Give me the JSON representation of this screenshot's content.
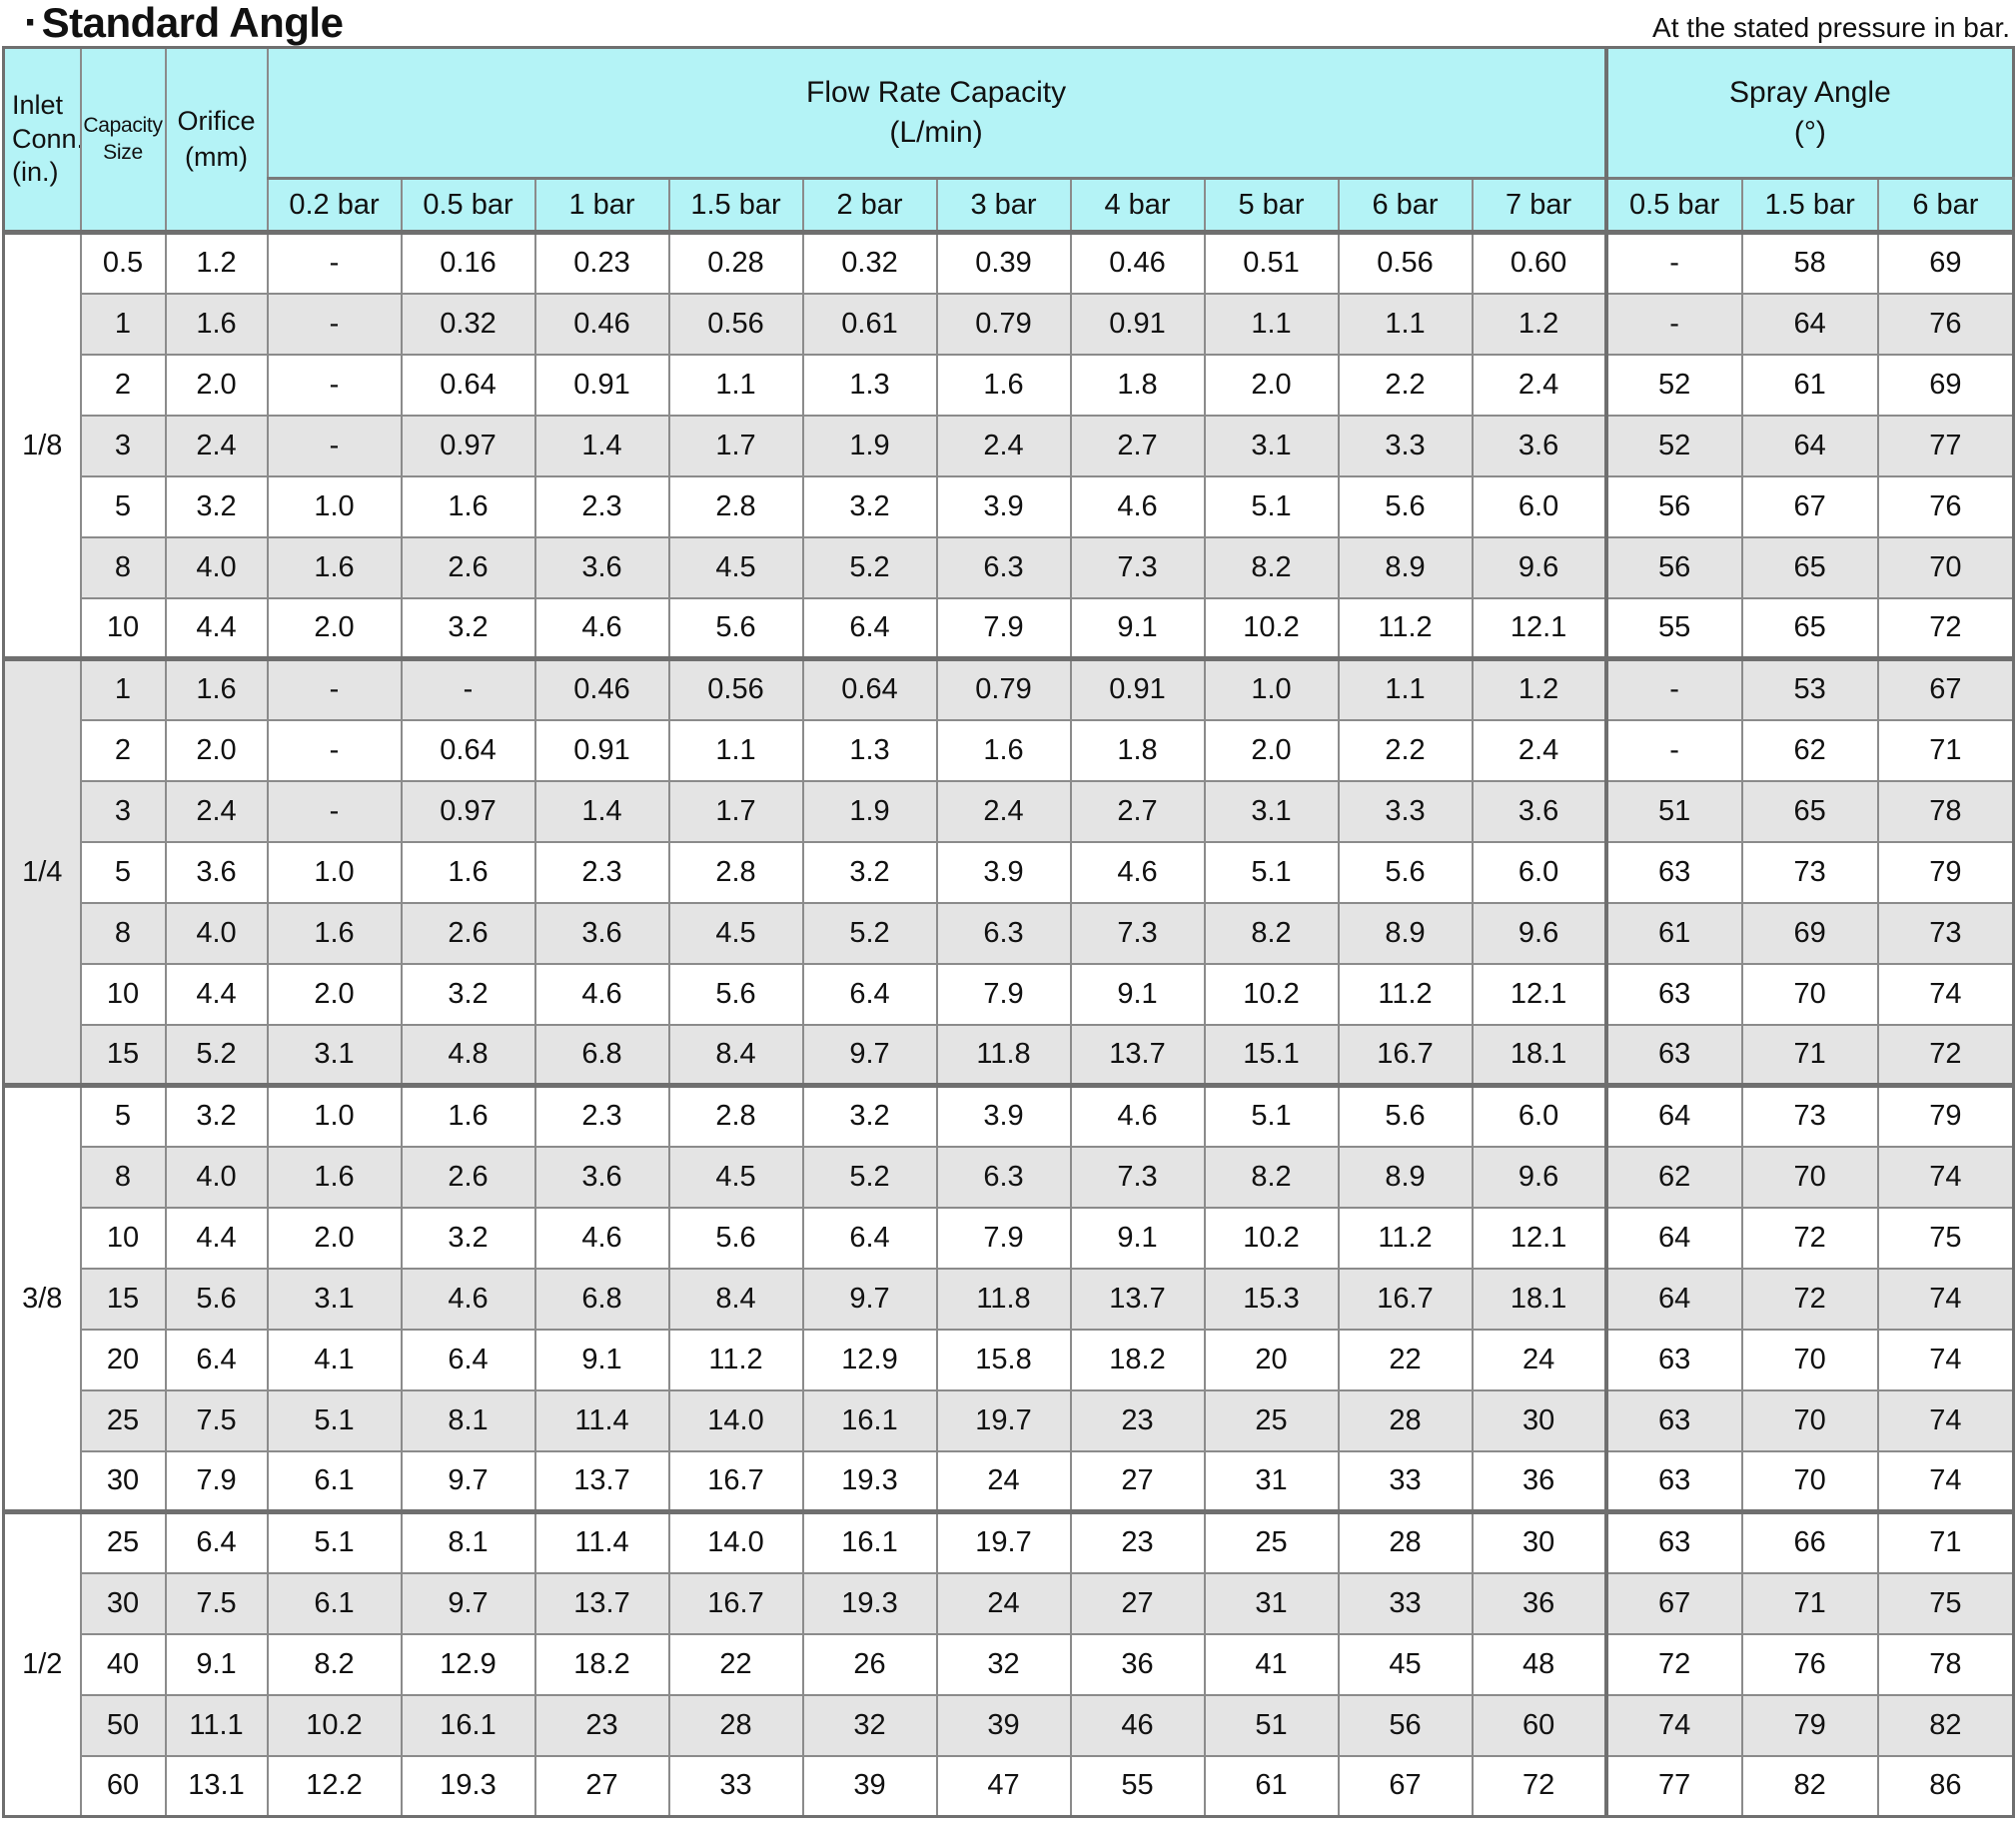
{
  "page": {
    "title_bullet": "·",
    "title": "Standard Angle",
    "note": "At the stated pressure in bar."
  },
  "colors": {
    "header_bg": "#b4f3f6",
    "row_alt_bg": "#e4e4e4",
    "border": "#8b8b8b"
  },
  "table": {
    "headers": {
      "inlet": "Inlet\nConn.\n(in.)",
      "capacity": "Capacity\nSize",
      "orifice": "Orifice\n(mm)",
      "flow_group": "Flow Rate Capacity",
      "flow_unit": "(L/min)",
      "spray_group": "Spray Angle",
      "spray_unit": "(°)",
      "flow_cols": [
        "0.2 bar",
        "0.5 bar",
        "1 bar",
        "1.5 bar",
        "2 bar",
        "3 bar",
        "4 bar",
        "5 bar",
        "6 bar",
        "7 bar"
      ],
      "spray_cols": [
        "0.5 bar",
        "1.5 bar",
        "6 bar"
      ]
    },
    "groups": [
      {
        "inlet": "1/8",
        "rows": [
          {
            "capacity": "0.5",
            "orifice": "1.2",
            "flow": [
              "-",
              "0.16",
              "0.23",
              "0.28",
              "0.32",
              "0.39",
              "0.46",
              "0.51",
              "0.56",
              "0.60"
            ],
            "spray": [
              "-",
              "58",
              "69"
            ]
          },
          {
            "capacity": "1",
            "orifice": "1.6",
            "flow": [
              "-",
              "0.32",
              "0.46",
              "0.56",
              "0.61",
              "0.79",
              "0.91",
              "1.1",
              "1.1",
              "1.2"
            ],
            "spray": [
              "-",
              "64",
              "76"
            ]
          },
          {
            "capacity": "2",
            "orifice": "2.0",
            "flow": [
              "-",
              "0.64",
              "0.91",
              "1.1",
              "1.3",
              "1.6",
              "1.8",
              "2.0",
              "2.2",
              "2.4"
            ],
            "spray": [
              "52",
              "61",
              "69"
            ]
          },
          {
            "capacity": "3",
            "orifice": "2.4",
            "flow": [
              "-",
              "0.97",
              "1.4",
              "1.7",
              "1.9",
              "2.4",
              "2.7",
              "3.1",
              "3.3",
              "3.6"
            ],
            "spray": [
              "52",
              "64",
              "77"
            ]
          },
          {
            "capacity": "5",
            "orifice": "3.2",
            "flow": [
              "1.0",
              "1.6",
              "2.3",
              "2.8",
              "3.2",
              "3.9",
              "4.6",
              "5.1",
              "5.6",
              "6.0"
            ],
            "spray": [
              "56",
              "67",
              "76"
            ]
          },
          {
            "capacity": "8",
            "orifice": "4.0",
            "flow": [
              "1.6",
              "2.6",
              "3.6",
              "4.5",
              "5.2",
              "6.3",
              "7.3",
              "8.2",
              "8.9",
              "9.6"
            ],
            "spray": [
              "56",
              "65",
              "70"
            ]
          },
          {
            "capacity": "10",
            "orifice": "4.4",
            "flow": [
              "2.0",
              "3.2",
              "4.6",
              "5.6",
              "6.4",
              "7.9",
              "9.1",
              "10.2",
              "11.2",
              "12.1"
            ],
            "spray": [
              "55",
              "65",
              "72"
            ]
          }
        ]
      },
      {
        "inlet": "1/4",
        "rows": [
          {
            "capacity": "1",
            "orifice": "1.6",
            "flow": [
              "-",
              "-",
              "0.46",
              "0.56",
              "0.64",
              "0.79",
              "0.91",
              "1.0",
              "1.1",
              "1.2"
            ],
            "spray": [
              "-",
              "53",
              "67"
            ]
          },
          {
            "capacity": "2",
            "orifice": "2.0",
            "flow": [
              "-",
              "0.64",
              "0.91",
              "1.1",
              "1.3",
              "1.6",
              "1.8",
              "2.0",
              "2.2",
              "2.4"
            ],
            "spray": [
              "-",
              "62",
              "71"
            ]
          },
          {
            "capacity": "3",
            "orifice": "2.4",
            "flow": [
              "-",
              "0.97",
              "1.4",
              "1.7",
              "1.9",
              "2.4",
              "2.7",
              "3.1",
              "3.3",
              "3.6"
            ],
            "spray": [
              "51",
              "65",
              "78"
            ]
          },
          {
            "capacity": "5",
            "orifice": "3.6",
            "flow": [
              "1.0",
              "1.6",
              "2.3",
              "2.8",
              "3.2",
              "3.9",
              "4.6",
              "5.1",
              "5.6",
              "6.0"
            ],
            "spray": [
              "63",
              "73",
              "79"
            ]
          },
          {
            "capacity": "8",
            "orifice": "4.0",
            "flow": [
              "1.6",
              "2.6",
              "3.6",
              "4.5",
              "5.2",
              "6.3",
              "7.3",
              "8.2",
              "8.9",
              "9.6"
            ],
            "spray": [
              "61",
              "69",
              "73"
            ]
          },
          {
            "capacity": "10",
            "orifice": "4.4",
            "flow": [
              "2.0",
              "3.2",
              "4.6",
              "5.6",
              "6.4",
              "7.9",
              "9.1",
              "10.2",
              "11.2",
              "12.1"
            ],
            "spray": [
              "63",
              "70",
              "74"
            ]
          },
          {
            "capacity": "15",
            "orifice": "5.2",
            "flow": [
              "3.1",
              "4.8",
              "6.8",
              "8.4",
              "9.7",
              "11.8",
              "13.7",
              "15.1",
              "16.7",
              "18.1"
            ],
            "spray": [
              "63",
              "71",
              "72"
            ]
          }
        ]
      },
      {
        "inlet": "3/8",
        "rows": [
          {
            "capacity": "5",
            "orifice": "3.2",
            "flow": [
              "1.0",
              "1.6",
              "2.3",
              "2.8",
              "3.2",
              "3.9",
              "4.6",
              "5.1",
              "5.6",
              "6.0"
            ],
            "spray": [
              "64",
              "73",
              "79"
            ]
          },
          {
            "capacity": "8",
            "orifice": "4.0",
            "flow": [
              "1.6",
              "2.6",
              "3.6",
              "4.5",
              "5.2",
              "6.3",
              "7.3",
              "8.2",
              "8.9",
              "9.6"
            ],
            "spray": [
              "62",
              "70",
              "74"
            ]
          },
          {
            "capacity": "10",
            "orifice": "4.4",
            "flow": [
              "2.0",
              "3.2",
              "4.6",
              "5.6",
              "6.4",
              "7.9",
              "9.1",
              "10.2",
              "11.2",
              "12.1"
            ],
            "spray": [
              "64",
              "72",
              "75"
            ]
          },
          {
            "capacity": "15",
            "orifice": "5.6",
            "flow": [
              "3.1",
              "4.6",
              "6.8",
              "8.4",
              "9.7",
              "11.8",
              "13.7",
              "15.3",
              "16.7",
              "18.1"
            ],
            "spray": [
              "64",
              "72",
              "74"
            ]
          },
          {
            "capacity": "20",
            "orifice": "6.4",
            "flow": [
              "4.1",
              "6.4",
              "9.1",
              "11.2",
              "12.9",
              "15.8",
              "18.2",
              "20",
              "22",
              "24"
            ],
            "spray": [
              "63",
              "70",
              "74"
            ]
          },
          {
            "capacity": "25",
            "orifice": "7.5",
            "flow": [
              "5.1",
              "8.1",
              "11.4",
              "14.0",
              "16.1",
              "19.7",
              "23",
              "25",
              "28",
              "30"
            ],
            "spray": [
              "63",
              "70",
              "74"
            ]
          },
          {
            "capacity": "30",
            "orifice": "7.9",
            "flow": [
              "6.1",
              "9.7",
              "13.7",
              "16.7",
              "19.3",
              "24",
              "27",
              "31",
              "33",
              "36"
            ],
            "spray": [
              "63",
              "70",
              "74"
            ]
          }
        ]
      },
      {
        "inlet": "1/2",
        "rows": [
          {
            "capacity": "25",
            "orifice": "6.4",
            "flow": [
              "5.1",
              "8.1",
              "11.4",
              "14.0",
              "16.1",
              "19.7",
              "23",
              "25",
              "28",
              "30"
            ],
            "spray": [
              "63",
              "66",
              "71"
            ]
          },
          {
            "capacity": "30",
            "orifice": "7.5",
            "flow": [
              "6.1",
              "9.7",
              "13.7",
              "16.7",
              "19.3",
              "24",
              "27",
              "31",
              "33",
              "36"
            ],
            "spray": [
              "67",
              "71",
              "75"
            ]
          },
          {
            "capacity": "40",
            "orifice": "9.1",
            "flow": [
              "8.2",
              "12.9",
              "18.2",
              "22",
              "26",
              "32",
              "36",
              "41",
              "45",
              "48"
            ],
            "spray": [
              "72",
              "76",
              "78"
            ]
          },
          {
            "capacity": "50",
            "orifice": "11.1",
            "flow": [
              "10.2",
              "16.1",
              "23",
              "28",
              "32",
              "39",
              "46",
              "51",
              "56",
              "60"
            ],
            "spray": [
              "74",
              "79",
              "82"
            ]
          },
          {
            "capacity": "60",
            "orifice": "13.1",
            "flow": [
              "12.2",
              "19.3",
              "27",
              "33",
              "39",
              "47",
              "55",
              "61",
              "67",
              "72"
            ],
            "spray": [
              "77",
              "82",
              "86"
            ]
          }
        ]
      }
    ]
  }
}
